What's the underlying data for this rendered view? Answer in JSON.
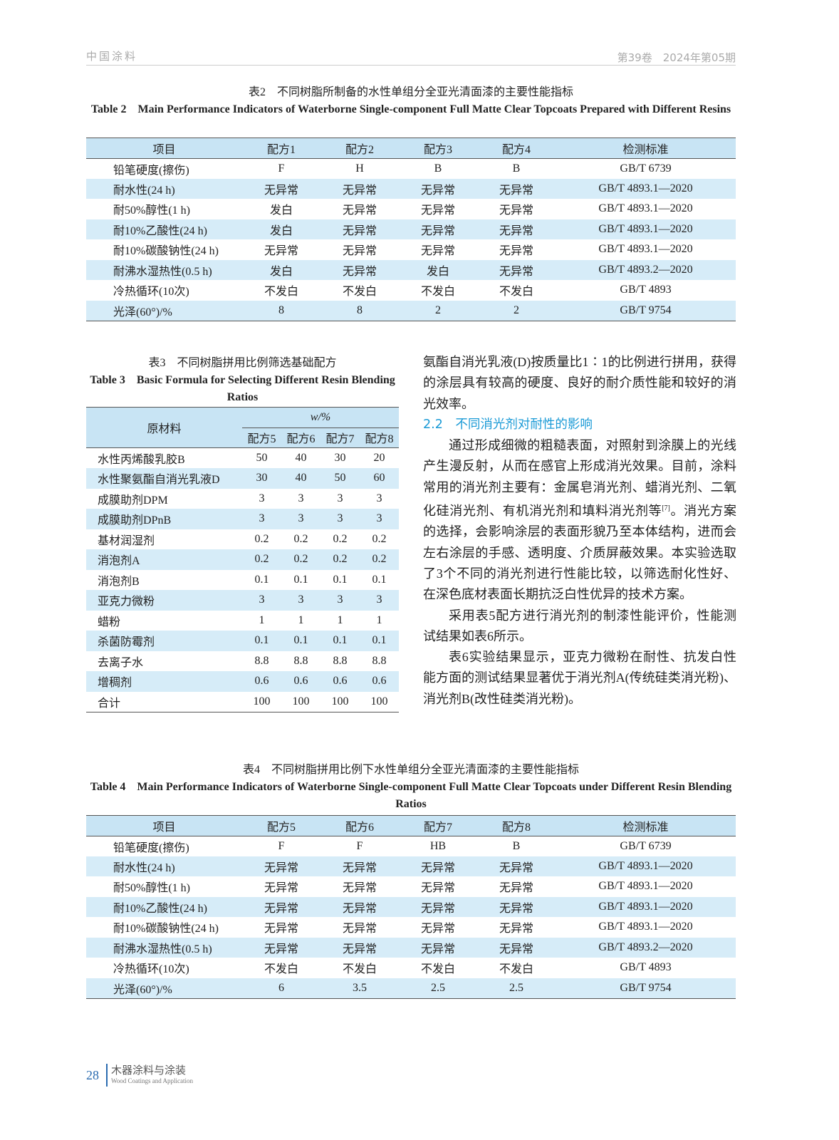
{
  "header": {
    "journal": "中国涂料",
    "issue": "第39卷　2024年第05期"
  },
  "table2": {
    "caption_cn": "表2　不同树脂所制备的水性单组分全亚光清面漆的主要性能指标",
    "caption_en": "Table 2　Main Performance Indicators of Waterborne Single-component Full Matte Clear Topcoats Prepared with Different Resins",
    "columns": [
      "项目",
      "配方1",
      "配方2",
      "配方3",
      "配方4",
      "检测标准"
    ],
    "rows": [
      [
        "铅笔硬度(擦伤)",
        "F",
        "H",
        "B",
        "B",
        "GB/T 6739"
      ],
      [
        "耐水性(24 h)",
        "无异常",
        "无异常",
        "无异常",
        "无异常",
        "GB/T 4893.1—2020"
      ],
      [
        "耐50%醇性(1 h)",
        "发白",
        "无异常",
        "无异常",
        "无异常",
        "GB/T 4893.1—2020"
      ],
      [
        "耐10%乙酸性(24 h)",
        "发白",
        "无异常",
        "无异常",
        "无异常",
        "GB/T 4893.1—2020"
      ],
      [
        "耐10%碳酸钠性(24 h)",
        "无异常",
        "无异常",
        "无异常",
        "无异常",
        "GB/T 4893.1—2020"
      ],
      [
        "耐沸水湿热性(0.5 h)",
        "发白",
        "无异常",
        "发白",
        "无异常",
        "GB/T 4893.2—2020"
      ],
      [
        "冷热循环(10次)",
        "不发白",
        "不发白",
        "不发白",
        "不发白",
        "GB/T 4893"
      ],
      [
        "光泽(60°)/%",
        "8",
        "8",
        "2",
        "2",
        "GB/T 9754"
      ]
    ]
  },
  "table3": {
    "caption_cn": "表3　不同树脂拼用比例筛选基础配方",
    "caption_en": "Table 3　Basic Formula for Selecting Different Resin Blending Ratios",
    "col_material": "原材料",
    "col_unit": "w/%",
    "columns": [
      "配方5",
      "配方6",
      "配方7",
      "配方8"
    ],
    "rows": [
      [
        "水性丙烯酸乳胶B",
        "50",
        "40",
        "30",
        "20"
      ],
      [
        "水性聚氨酯自消光乳液D",
        "30",
        "40",
        "50",
        "60"
      ],
      [
        "成膜助剂DPM",
        "3",
        "3",
        "3",
        "3"
      ],
      [
        "成膜助剂DPnB",
        "3",
        "3",
        "3",
        "3"
      ],
      [
        "基材润湿剂",
        "0.2",
        "0.2",
        "0.2",
        "0.2"
      ],
      [
        "消泡剂A",
        "0.2",
        "0.2",
        "0.2",
        "0.2"
      ],
      [
        "消泡剂B",
        "0.1",
        "0.1",
        "0.1",
        "0.1"
      ],
      [
        "亚克力微粉",
        "3",
        "3",
        "3",
        "3"
      ],
      [
        "蜡粉",
        "1",
        "1",
        "1",
        "1"
      ],
      [
        "杀菌防霉剂",
        "0.1",
        "0.1",
        "0.1",
        "0.1"
      ],
      [
        "去离子水",
        "8.8",
        "8.8",
        "8.8",
        "8.8"
      ],
      [
        "增稠剂",
        "0.6",
        "0.6",
        "0.6",
        "0.6"
      ],
      [
        "合计",
        "100",
        "100",
        "100",
        "100"
      ]
    ]
  },
  "text": {
    "p0": "氨酯自消光乳液(D)按质量比1∶1的比例进行拼用，获得的涂层具有较高的硬度、良好的耐介质性能和较好的消光效率。",
    "heading": "2.2　不同消光剂对耐性的影响",
    "p1a": "通过形成细微的粗糙表面，对照射到涂膜上的光线产生漫反射，从而在感官上形成消光效果。目前，涂料常用的消光剂主要有：金属皂消光剂、蜡消光剂、二氧化硅消光剂、有机消光剂和填料消光剂等",
    "p1ref": "[7]",
    "p1b": "。消光方案的选择，会影响涂层的表面形貌乃至本体结构，进而会左右涂层的手感、透明度、介质屏蔽效果。本实验选取了3个不同的消光剂进行性能比较，以筛选耐化性好、在深色底材表面长期抗泛白性优异的技术方案。",
    "p2": "采用表5配方进行消光剂的制漆性能评价，性能测试结果如表6所示。",
    "p3": "表6实验结果显示，亚克力微粉在耐性、抗发白性能方面的测试结果显著优于消光剂A(传统硅类消光粉)、消光剂B(改性硅类消光粉)。"
  },
  "table4": {
    "caption_cn": "表4　不同树脂拼用比例下水性单组分全亚光清面漆的主要性能指标",
    "caption_en": "Table 4　Main Performance Indicators of Waterborne Single-component Full Matte Clear Topcoats under Different Resin Blending Ratios",
    "columns": [
      "项目",
      "配方5",
      "配方6",
      "配方7",
      "配方8",
      "检测标准"
    ],
    "rows": [
      [
        "铅笔硬度(擦伤)",
        "F",
        "F",
        "HB",
        "B",
        "GB/T 6739"
      ],
      [
        "耐水性(24 h)",
        "无异常",
        "无异常",
        "无异常",
        "无异常",
        "GB/T 4893.1—2020"
      ],
      [
        "耐50%醇性(1 h)",
        "无异常",
        "无异常",
        "无异常",
        "无异常",
        "GB/T 4893.1—2020"
      ],
      [
        "耐10%乙酸性(24 h)",
        "无异常",
        "无异常",
        "无异常",
        "无异常",
        "GB/T 4893.1—2020"
      ],
      [
        "耐10%碳酸钠性(24 h)",
        "无异常",
        "无异常",
        "无异常",
        "无异常",
        "GB/T 4893.1—2020"
      ],
      [
        "耐沸水湿热性(0.5 h)",
        "无异常",
        "无异常",
        "无异常",
        "无异常",
        "GB/T 4893.2—2020"
      ],
      [
        "冷热循环(10次)",
        "不发白",
        "不发白",
        "不发白",
        "不发白",
        "GB/T 4893"
      ],
      [
        "光泽(60°)/%",
        "6",
        "3.5",
        "2.5",
        "2.5",
        "GB/T 9754"
      ]
    ]
  },
  "footer": {
    "page": "28",
    "journal_cn": "木器涂料与涂装",
    "journal_en": "Wood Coatings and Application"
  },
  "colors": {
    "header_row": "#c8e4f4",
    "stripe": "#d6ecf8",
    "heading": "#1a9ad6",
    "footer": "#2a6bb0"
  }
}
